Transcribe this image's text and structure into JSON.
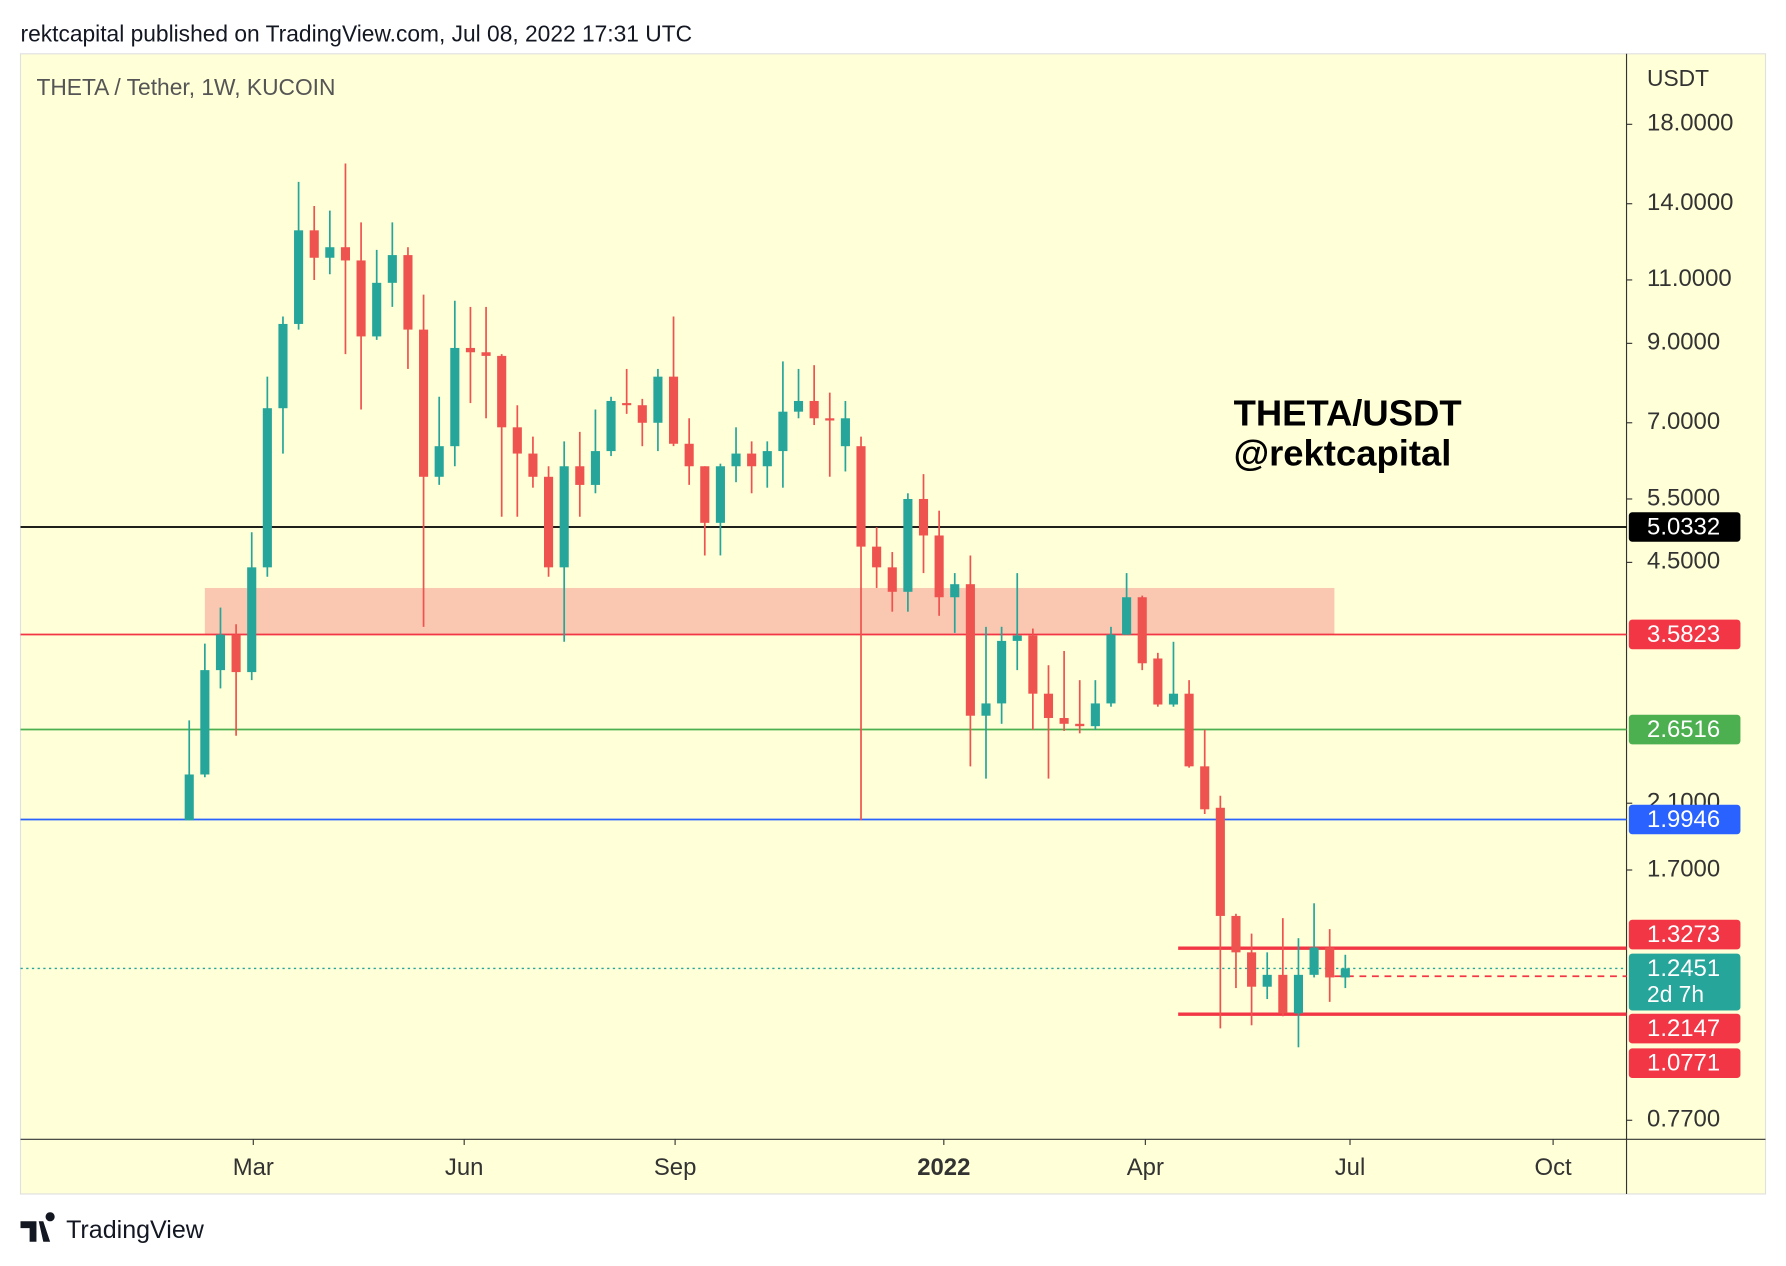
{
  "chart_data": {
    "type": "candlestick",
    "header": "rektcapital published on TradingView.com, Jul 08, 2022 17:31 UTC",
    "title": "THETA / Tether, 1W, KUCOIN",
    "y_axis_label": "USDT",
    "annotations": [
      "THETA/USDT",
      "@rektcapital"
    ],
    "footer": "TradingView",
    "log_scale": true,
    "up_color": "#26a69a",
    "down_color": "#ef5350",
    "open": [
      1.99,
      2.3,
      3.2,
      3.58,
      3.18,
      4.43,
      7.33,
      9.57,
      12.87,
      11.8,
      12.2,
      11.7,
      9.2,
      10.9,
      11.9,
      9.4,
      5.9,
      6.5,
      8.87,
      8.75,
      8.65,
      6.9,
      6.35,
      5.9,
      4.43,
      6.1,
      5.75,
      6.4,
      7.45,
      7.4,
      7.0,
      8.1,
      6.55,
      6.1,
      5.1,
      6.1,
      6.35,
      6.1,
      6.4,
      7.25,
      7.5,
      7.1,
      6.5,
      6.5,
      4.73,
      4.43,
      4.1,
      5.5,
      4.9,
      4.03,
      4.2,
      2.77,
      2.88,
      3.51,
      3.57,
      2.97,
      2.75,
      2.7,
      2.68,
      2.88,
      3.58,
      4.03,
      3.32,
      2.87,
      2.97,
      2.36,
      2.07,
      1.47,
      1.31,
      1.175,
      1.22,
      1.08,
      1.22,
      1.33,
      1.21
    ],
    "high": [
      2.73,
      3.48,
      3.9,
      3.7,
      4.95,
      8.1,
      9.8,
      15.0,
      13.9,
      13.7,
      15.9,
      13.2,
      12.1,
      13.2,
      12.2,
      10.5,
      7.6,
      10.3,
      10.1,
      10.1,
      8.7,
      7.4,
      6.7,
      6.1,
      6.6,
      6.8,
      7.3,
      7.6,
      8.3,
      7.55,
      8.3,
      9.8,
      7.1,
      6.1,
      6.15,
      6.9,
      6.6,
      6.6,
      8.5,
      8.3,
      8.4,
      7.7,
      7.5,
      6.7,
      5.03,
      4.65,
      5.6,
      5.95,
      5.3,
      4.35,
      4.6,
      3.67,
      3.67,
      4.35,
      3.65,
      3.25,
      3.4,
      3.1,
      3.1,
      3.67,
      4.35,
      4.05,
      3.38,
      3.5,
      3.1,
      2.65,
      2.15,
      1.48,
      1.39,
      1.31,
      1.46,
      1.37,
      1.53,
      1.41,
      1.3
    ],
    "low": [
      1.99,
      2.28,
      3.02,
      2.6,
      3.1,
      4.3,
      6.35,
      9.4,
      11.0,
      11.2,
      8.7,
      7.3,
      9.1,
      10.1,
      8.3,
      3.67,
      5.75,
      6.1,
      7.45,
      7.1,
      5.2,
      5.2,
      5.7,
      4.3,
      3.5,
      5.2,
      5.6,
      6.3,
      7.2,
      6.5,
      6.4,
      6.5,
      5.75,
      4.6,
      4.6,
      5.8,
      5.6,
      5.7,
      5.7,
      7.1,
      6.95,
      5.9,
      6.0,
      1.99,
      4.15,
      3.85,
      3.85,
      4.35,
      3.8,
      3.6,
      2.36,
      2.27,
      2.7,
      3.2,
      2.65,
      2.27,
      2.64,
      2.62,
      2.65,
      2.85,
      3.58,
      3.2,
      2.85,
      2.85,
      2.35,
      2.03,
      1.03,
      1.17,
      1.04,
      1.13,
      1.07,
      0.97,
      1.21,
      1.12,
      1.17
    ],
    "close": [
      2.3,
      3.2,
      3.58,
      3.18,
      4.43,
      7.33,
      9.57,
      12.87,
      11.8,
      12.2,
      11.7,
      9.2,
      10.9,
      11.9,
      9.4,
      5.9,
      6.5,
      8.87,
      8.75,
      8.65,
      6.9,
      6.35,
      5.9,
      4.43,
      6.1,
      5.75,
      6.4,
      7.5,
      7.4,
      7.0,
      8.1,
      6.55,
      6.1,
      5.1,
      6.1,
      6.35,
      6.1,
      6.4,
      7.25,
      7.5,
      7.1,
      7.05,
      7.1,
      4.73,
      4.43,
      4.1,
      5.5,
      4.9,
      4.03,
      4.2,
      2.77,
      2.88,
      3.51,
      3.57,
      2.97,
      2.75,
      2.7,
      2.68,
      2.88,
      3.58,
      4.03,
      3.27,
      2.87,
      2.97,
      2.36,
      2.06,
      1.47,
      1.31,
      1.175,
      1.22,
      1.08,
      1.22,
      1.33,
      1.21,
      1.2451
    ],
    "xlim": [
      -10.8,
      92.0
    ],
    "xticks": [
      {
        "value": 4.1,
        "label": "Mar"
      },
      {
        "value": 17.6,
        "label": "Jun"
      },
      {
        "value": 31.1,
        "label": "Sep"
      },
      {
        "value": 48.3,
        "label": "2022"
      },
      {
        "value": 61.2,
        "label": "Apr"
      },
      {
        "value": 74.3,
        "label": "Jul"
      },
      {
        "value": 87.3,
        "label": "Oct"
      }
    ],
    "ylim": [
      0.725,
      22.5
    ],
    "yticks": [
      {
        "value": 18,
        "label": "18.0000"
      },
      {
        "value": 14,
        "label": "14.0000"
      },
      {
        "value": 11,
        "label": "11.0000"
      },
      {
        "value": 9,
        "label": "9.0000"
      },
      {
        "value": 7,
        "label": "7.0000"
      },
      {
        "value": 5.5,
        "label": "5.5000"
      },
      {
        "value": 4.5,
        "label": "4.5000"
      },
      {
        "value": 2.1,
        "label": "2.1000"
      },
      {
        "value": 1.7,
        "label": "1.7000"
      },
      {
        "value": 0.77,
        "label": "0.7700"
      }
    ],
    "zone": {
      "y": [
        3.5823,
        4.15
      ],
      "x": [
        1,
        73.3
      ],
      "color": "#fac7b0"
    },
    "levels": [
      {
        "value": 5.0332,
        "color": "#000000",
        "style": "solid"
      },
      {
        "value": 3.5823,
        "color": "#f23645",
        "style": "solid"
      },
      {
        "value": 2.6516,
        "color": "#4caf50",
        "style": "solid"
      },
      {
        "value": 1.9946,
        "color": "#2962ff",
        "style": "solid"
      },
      {
        "value": 1.3273,
        "color": "#f23645",
        "style": "thick",
        "from_x": 63.3
      },
      {
        "value": 1.2147,
        "color": "#f23645",
        "style": "dashed",
        "from_x": 73.3
      },
      {
        "value": 1.0771,
        "color": "#f23645",
        "style": "thick",
        "from_x": 63.3
      }
    ],
    "current": {
      "value": 1.2451,
      "countdown": "2d 7h",
      "color": "#26a69a"
    }
  }
}
